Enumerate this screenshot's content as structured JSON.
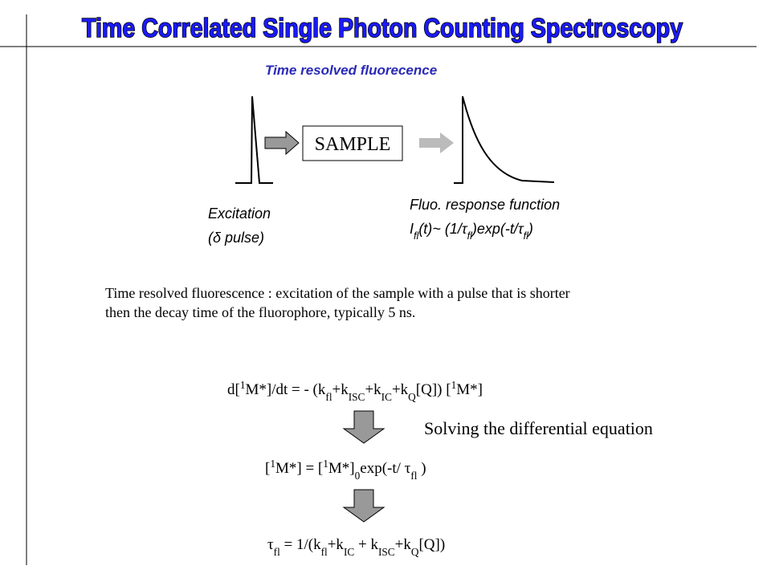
{
  "title": "Time Correlated Single Photon Counting Spectroscopy",
  "subtitle": "Time resolved fluorecence",
  "sample_box": "SAMPLE",
  "excitation": {
    "lines": [
      "Excitation",
      "(δ pulse)"
    ]
  },
  "fluo": {
    "label": "Fluo. response function",
    "formula": [
      "I",
      "fl",
      "(t)",
      "~ (1/",
      "τ",
      "fl",
      ")exp(-t/",
      "τ",
      "fl",
      ")"
    ]
  },
  "paragraph": [
    "Time resolved fluorescence : excitation of the sample with a pulse that is shorter",
    "then the decay time of the fluorophore, typically 5 ns."
  ],
  "equation_1": [
    "d[",
    "1",
    "M*]/dt = - (k",
    "fl",
    "+k",
    "ISC",
    "+k",
    "IC",
    "+k",
    "Q",
    "[Q]) [",
    "1",
    "M*]"
  ],
  "solving": "Solving the differential equation",
  "equation_2": [
    "[",
    "1",
    "M*] = [",
    "1",
    "M*]",
    "0",
    "exp(-t/ ",
    "τ",
    "fl",
    " )"
  ],
  "equation_3": [
    "τ",
    "fl",
    " = 1/(k",
    "fl",
    "+k",
    "IC",
    " + k",
    "ISC",
    "+k",
    "Q",
    "[Q])"
  ]
}
